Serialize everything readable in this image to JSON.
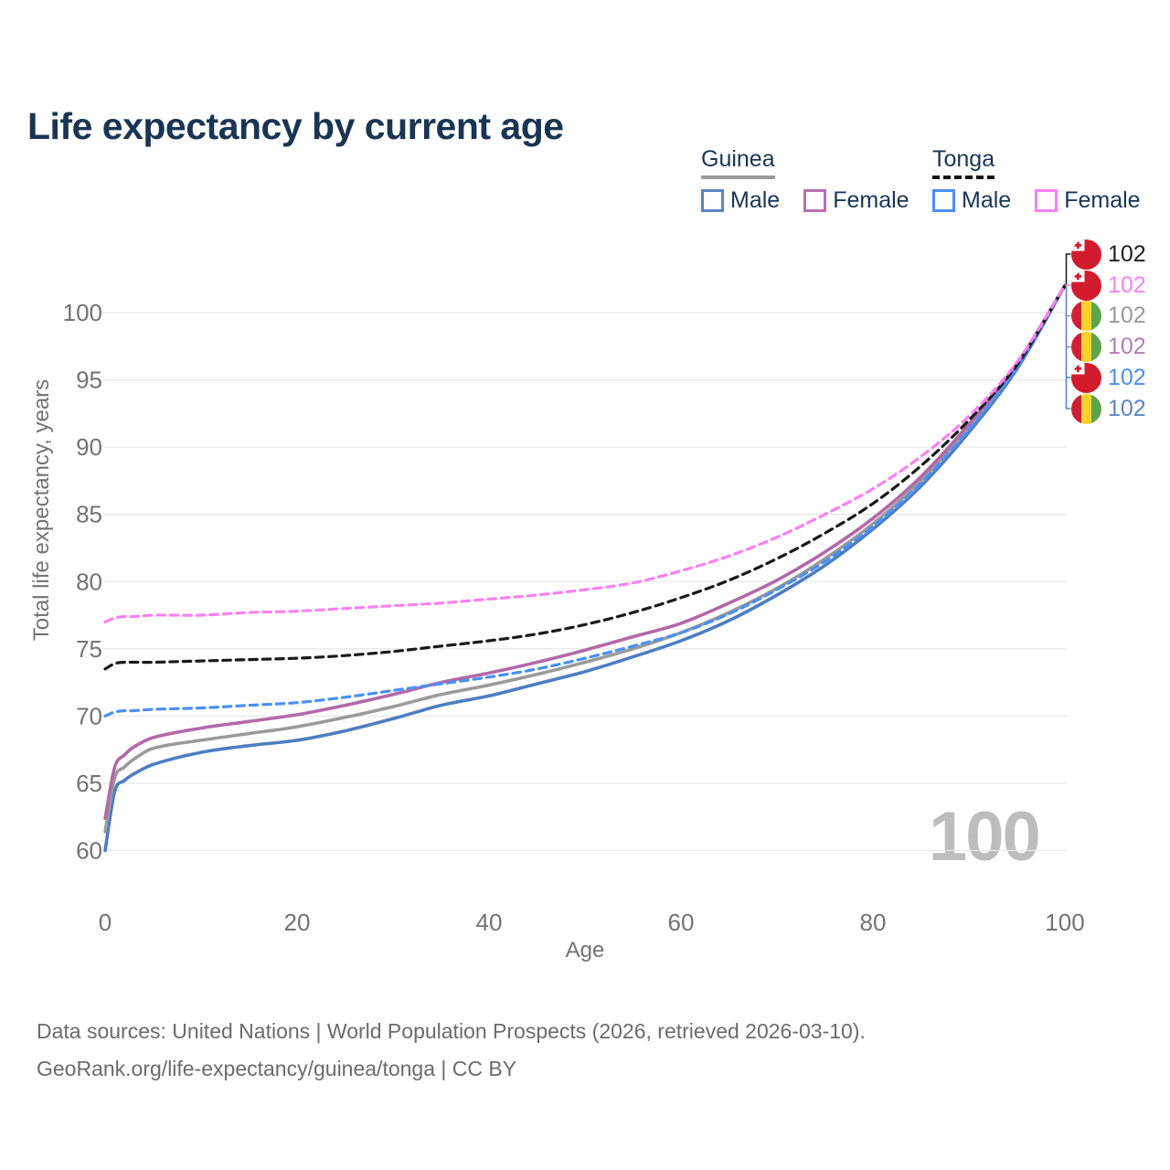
{
  "title": "Life expectancy by current age",
  "watermark": "100",
  "legend": {
    "groups": [
      {
        "label": "Guinea",
        "line_style": "solid",
        "underline_color": "#9a9a9a",
        "items": [
          {
            "label": "Male",
            "color": "#5b84c2",
            "dashed": false
          },
          {
            "label": "Female",
            "color": "#b671ad",
            "dashed": false
          }
        ]
      },
      {
        "label": "Tonga",
        "line_style": "dashed",
        "underline_color": "#141414",
        "items": [
          {
            "label": "Male",
            "color": "#4a90f5",
            "dashed": true
          },
          {
            "label": "Female",
            "color": "#fc80f2",
            "dashed": true
          }
        ]
      }
    ]
  },
  "axes": {
    "x": {
      "label": "Age",
      "ticks": [
        0,
        20,
        40,
        60,
        80,
        100
      ],
      "min": 0,
      "max": 100
    },
    "y": {
      "label": "Total life expectancy, years",
      "ticks": [
        60,
        65,
        70,
        75,
        80,
        85,
        90,
        95,
        100
      ],
      "min": 58.5,
      "max": 103
    }
  },
  "end_labels": [
    {
      "series": "Tonga",
      "flag": "tonga",
      "value": "102",
      "color": "#1f1f1f"
    },
    {
      "series": "Tonga Female",
      "flag": "tonga",
      "value": "102",
      "color": "#fc80f2"
    },
    {
      "series": "Guinea",
      "flag": "guinea",
      "value": "102",
      "color": "#9a9a9a"
    },
    {
      "series": "Guinea Female",
      "flag": "guinea",
      "value": "102",
      "color": "#b37fb2"
    },
    {
      "series": "Tonga Male",
      "flag": "tonga",
      "value": "102",
      "color": "#4a90f5"
    },
    {
      "series": "Guinea Male",
      "flag": "guinea",
      "value": "102",
      "color": "#5b84c6"
    }
  ],
  "flag_colors": {
    "tonga": {
      "red": "#d21c2e",
      "white": "#ffffff"
    },
    "guinea": {
      "red": "#cf2033",
      "yellow": "#f9d32c",
      "green": "#5fa54b"
    }
  },
  "footer": {
    "line1": "Data sources: United Nations | World Population Prospects (2026, retrieved 2026-03-10).",
    "line2": "GeoRank.org/life-expectancy/guinea/tonga | CC BY"
  },
  "chart_data": {
    "type": "line",
    "title": "Life expectancy by current age",
    "xlabel": "Age",
    "ylabel": "Total life expectancy, years",
    "xlim": [
      0,
      100
    ],
    "ylim": [
      58.5,
      103
    ],
    "grid": "horizontal",
    "legend_position": "top-right",
    "x": [
      0,
      1,
      2,
      3,
      5,
      10,
      15,
      20,
      25,
      30,
      35,
      40,
      45,
      50,
      55,
      60,
      65,
      70,
      75,
      80,
      85,
      90,
      95,
      100
    ],
    "series": [
      {
        "name": "Guinea Male",
        "country": "Guinea",
        "sex": "male",
        "color": "#4d7ec0",
        "dash": false,
        "values": [
          60.0,
          64.4,
          65.2,
          65.7,
          66.4,
          67.3,
          67.8,
          68.2,
          68.9,
          69.8,
          70.8,
          71.5,
          72.4,
          73.3,
          74.4,
          75.6,
          77.1,
          79.0,
          81.2,
          83.9,
          87.1,
          91.1,
          95.8,
          102
        ]
      },
      {
        "name": "Guinea",
        "country": "Guinea",
        "sex": "both",
        "color": "#9a9a9a",
        "dash": false,
        "values": [
          61.4,
          65.4,
          66.2,
          66.8,
          67.6,
          68.2,
          68.7,
          69.2,
          69.9,
          70.7,
          71.6,
          72.3,
          73.1,
          74.0,
          75.0,
          76.2,
          77.7,
          79.5,
          81.7,
          84.3,
          87.5,
          91.5,
          96.1,
          102
        ]
      },
      {
        "name": "Guinea Female",
        "country": "Guinea",
        "sex": "female",
        "color": "#b269a8",
        "dash": false,
        "values": [
          62.4,
          66.2,
          67.1,
          67.7,
          68.4,
          69.1,
          69.6,
          70.1,
          70.8,
          71.6,
          72.5,
          73.2,
          74.0,
          74.9,
          75.9,
          76.9,
          78.4,
          80.1,
          82.2,
          84.7,
          87.8,
          91.7,
          96.2,
          102
        ]
      },
      {
        "name": "Tonga Male",
        "country": "Tonga",
        "sex": "male",
        "color": "#4a90f5",
        "dash": true,
        "values": [
          70.0,
          70.3,
          70.4,
          70.4,
          70.5,
          70.6,
          70.8,
          71.0,
          71.4,
          71.9,
          72.4,
          72.9,
          73.5,
          74.3,
          75.2,
          76.2,
          77.6,
          79.4,
          81.5,
          84.1,
          87.3,
          91.3,
          95.9,
          102
        ]
      },
      {
        "name": "Tonga",
        "country": "Tonga",
        "sex": "both",
        "color": "#1a1a1a",
        "dash": true,
        "values": [
          73.5,
          73.9,
          74.0,
          74.0,
          74.0,
          74.1,
          74.2,
          74.3,
          74.5,
          74.8,
          75.2,
          75.6,
          76.1,
          76.8,
          77.7,
          78.8,
          80.1,
          81.7,
          83.6,
          85.8,
          88.6,
          92.0,
          96.1,
          102
        ]
      },
      {
        "name": "Tonga Female",
        "country": "Tonga",
        "sex": "female",
        "color": "#fc80f2",
        "dash": true,
        "values": [
          77.0,
          77.3,
          77.4,
          77.4,
          77.5,
          77.5,
          77.7,
          77.8,
          78.0,
          78.2,
          78.4,
          78.7,
          79.0,
          79.4,
          79.9,
          80.8,
          81.9,
          83.3,
          85.0,
          86.9,
          89.3,
          92.3,
          96.3,
          102
        ]
      }
    ]
  }
}
